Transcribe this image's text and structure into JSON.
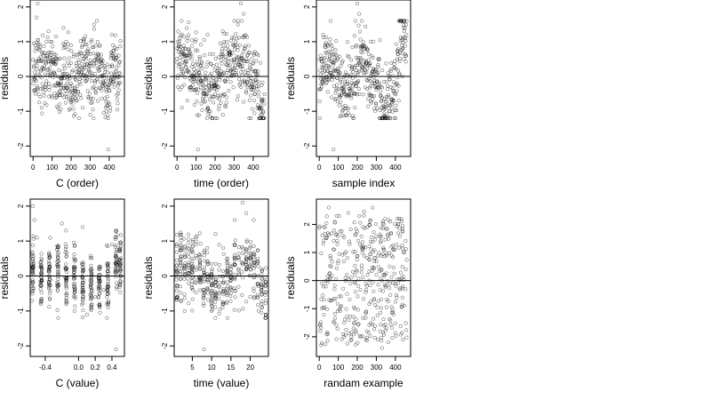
{
  "figure": {
    "background": "#ffffff",
    "point_color": "#000000",
    "refline_color": "#000000"
  },
  "chart_data": [
    {
      "type": "scatter",
      "xlabel": "C (order)",
      "ylabel": "residuals",
      "xlim": [
        -15,
        480
      ],
      "ylim": [
        -2.3,
        2.2
      ],
      "xticks": [
        0,
        100,
        200,
        300,
        400
      ],
      "xtick_labels": [
        "0",
        "100",
        "200",
        "300",
        "400"
      ],
      "yticks": [
        -2,
        -1,
        0,
        1,
        2
      ],
      "ytick_labels": [
        "-2",
        "-1",
        "0",
        "1",
        "2"
      ],
      "hline": 0,
      "n_points": 460,
      "points": [
        [
          5,
          0.3
        ],
        [
          12,
          -0.5
        ],
        [
          18,
          1.7
        ],
        [
          24,
          2.1
        ],
        [
          30,
          0.8
        ],
        [
          45,
          -0.9
        ],
        [
          55,
          0.2
        ],
        [
          70,
          1.0
        ],
        [
          85,
          -0.3
        ],
        [
          100,
          -0.6
        ],
        [
          120,
          0.4
        ],
        [
          140,
          -0.8
        ],
        [
          160,
          1.4
        ],
        [
          180,
          -0.2
        ],
        [
          200,
          0.9
        ],
        [
          220,
          -0.4
        ],
        [
          240,
          0.1
        ],
        [
          260,
          -0.9
        ],
        [
          280,
          0.6
        ],
        [
          300,
          -1.1
        ],
        [
          320,
          0.3
        ],
        [
          340,
          -0.7
        ],
        [
          360,
          0.5
        ],
        [
          380,
          0.2
        ],
        [
          395,
          -2.1
        ],
        [
          410,
          0.7
        ],
        [
          420,
          0.9
        ],
        [
          430,
          0.5
        ],
        [
          440,
          0.8
        ],
        [
          450,
          0.6
        ]
      ]
    },
    {
      "type": "scatter",
      "xlabel": "time (order)",
      "ylabel": "residuals",
      "xlim": [
        -15,
        480
      ],
      "ylim": [
        -2.3,
        2.2
      ],
      "xticks": [
        0,
        100,
        200,
        300,
        400
      ],
      "xtick_labels": [
        "0",
        "100",
        "200",
        "300",
        "400"
      ],
      "yticks": [
        -2,
        -1,
        0,
        1,
        2
      ],
      "ytick_labels": [
        "-2",
        "-1",
        "0",
        "1",
        "2"
      ],
      "hline": 0,
      "n_points": 460,
      "points": [
        [
          5,
          -0.3
        ],
        [
          15,
          1.1
        ],
        [
          25,
          -0.9
        ],
        [
          40,
          0.4
        ],
        [
          60,
          0.8
        ],
        [
          80,
          0.5
        ],
        [
          95,
          1.0
        ],
        [
          110,
          -2.1
        ],
        [
          125,
          0.3
        ],
        [
          140,
          -0.4
        ],
        [
          160,
          1.2
        ],
        [
          180,
          -0.2
        ],
        [
          200,
          -0.5
        ],
        [
          220,
          0.1
        ],
        [
          240,
          1.3
        ],
        [
          260,
          -0.6
        ],
        [
          280,
          0.7
        ],
        [
          300,
          0.4
        ],
        [
          320,
          1.5
        ],
        [
          335,
          2.1
        ],
        [
          350,
          1.8
        ],
        [
          370,
          -0.3
        ],
        [
          390,
          0.2
        ],
        [
          410,
          -0.5
        ],
        [
          430,
          -0.9
        ],
        [
          445,
          -1.1
        ]
      ]
    },
    {
      "type": "scatter",
      "xlabel": "sample index",
      "ylabel": "residuals",
      "xlim": [
        -15,
        480
      ],
      "ylim": [
        -2.3,
        2.2
      ],
      "xticks": [
        0,
        100,
        200,
        300,
        400
      ],
      "xtick_labels": [
        "0",
        "100",
        "200",
        "300",
        "400"
      ],
      "yticks": [
        -2,
        -1,
        0,
        1,
        2
      ],
      "ytick_labels": [
        "-2",
        "-1",
        "0",
        "1",
        "2"
      ],
      "hline": 0,
      "n_points": 460,
      "points": [
        [
          10,
          0.5
        ],
        [
          20,
          1.2
        ],
        [
          35,
          -0.2
        ],
        [
          50,
          0.3
        ],
        [
          65,
          -0.6
        ],
        [
          75,
          -2.1
        ],
        [
          90,
          -0.4
        ],
        [
          110,
          0.1
        ],
        [
          130,
          -0.3
        ],
        [
          150,
          0.6
        ],
        [
          170,
          0.2
        ],
        [
          190,
          1.6
        ],
        [
          200,
          2.1
        ],
        [
          210,
          1.8
        ],
        [
          230,
          0.9
        ],
        [
          250,
          0.4
        ],
        [
          270,
          1.0
        ],
        [
          290,
          -0.2
        ],
        [
          310,
          0.5
        ],
        [
          330,
          -0.6
        ],
        [
          350,
          -0.9
        ],
        [
          370,
          -1.0
        ],
        [
          390,
          -0.7
        ],
        [
          410,
          0.5
        ],
        [
          425,
          0.7
        ],
        [
          440,
          0.8
        ],
        [
          455,
          0.6
        ]
      ]
    },
    {
      "type": "scatter",
      "xlabel": "C (value)",
      "ylabel": "residuals",
      "xlim": [
        -0.58,
        0.55
      ],
      "ylim": [
        -2.3,
        2.2
      ],
      "xticks": [
        -0.4,
        0.0,
        0.2,
        0.4
      ],
      "xtick_labels": [
        "-0.4",
        "0.0",
        "0.2",
        "0.4"
      ],
      "yticks": [
        -2,
        -1,
        0,
        1,
        2
      ],
      "ytick_labels": [
        "-2",
        "-1",
        "0",
        "1",
        "2"
      ],
      "hline": 0,
      "n_points": 460,
      "columns": [
        -0.55,
        -0.45,
        -0.35,
        -0.25,
        -0.15,
        -0.05,
        0.05,
        0.15,
        0.25,
        0.35,
        0.45,
        0.5
      ],
      "points": [
        [
          -0.55,
          2.0
        ],
        [
          -0.53,
          1.6
        ],
        [
          -0.5,
          1.1
        ],
        [
          -0.45,
          -0.8
        ],
        [
          -0.35,
          0.6
        ],
        [
          -0.2,
          1.5
        ],
        [
          -0.05,
          -1.0
        ],
        [
          0.05,
          1.4
        ],
        [
          0.1,
          -1.1
        ],
        [
          0.2,
          -0.6
        ],
        [
          0.3,
          -0.4
        ],
        [
          0.4,
          0.9
        ],
        [
          0.45,
          -2.1
        ],
        [
          0.5,
          0.8
        ]
      ]
    },
    {
      "type": "scatter",
      "xlabel": "time (value)",
      "ylabel": "residuals",
      "xlim": [
        0.3,
        24.7
      ],
      "ylim": [
        -2.3,
        2.2
      ],
      "xticks": [
        5,
        10,
        15,
        20
      ],
      "xtick_labels": [
        "5",
        "10",
        "15",
        "20"
      ],
      "yticks": [
        -2,
        -1,
        0,
        1,
        2
      ],
      "ytick_labels": [
        "-2",
        "-1",
        "0",
        "1",
        "2"
      ],
      "hline": 0,
      "n_points": 460,
      "points": [
        [
          1,
          -0.3
        ],
        [
          2,
          1.1
        ],
        [
          3,
          -1.0
        ],
        [
          5,
          0.5
        ],
        [
          6,
          0.9
        ],
        [
          7,
          0.2
        ],
        [
          8,
          -2.1
        ],
        [
          9,
          0.4
        ],
        [
          11,
          1.2
        ],
        [
          12,
          -0.3
        ],
        [
          13,
          0.8
        ],
        [
          14,
          -0.5
        ],
        [
          16,
          1.6
        ],
        [
          18,
          2.1
        ],
        [
          19,
          1.8
        ],
        [
          20,
          0.3
        ],
        [
          21,
          -0.6
        ],
        [
          22,
          0.4
        ],
        [
          23,
          -0.9
        ],
        [
          24,
          -1.1
        ]
      ]
    },
    {
      "type": "scatter",
      "xlabel": "randam example",
      "ylabel": "residuals",
      "xlim": [
        -15,
        480
      ],
      "ylim": [
        -2.7,
        2.9
      ],
      "xticks": [
        0,
        100,
        200,
        300,
        400
      ],
      "xtick_labels": [
        "0",
        "100",
        "200",
        "300",
        "400"
      ],
      "yticks": [
        -2,
        -1,
        0,
        1,
        2
      ],
      "ytick_labels": [
        "-2",
        "-1",
        "0",
        "1",
        "2"
      ],
      "hline": 0,
      "n_points": 400,
      "points": [
        [
          10,
          -2.3
        ],
        [
          30,
          1.9
        ],
        [
          50,
          2.6
        ],
        [
          80,
          -1.5
        ],
        [
          100,
          0.7
        ],
        [
          130,
          -2.0
        ],
        [
          160,
          1.3
        ],
        [
          190,
          -0.4
        ],
        [
          210,
          2.3
        ],
        [
          250,
          -1.8
        ],
        [
          280,
          2.6
        ],
        [
          300,
          0.2
        ],
        [
          330,
          -2.4
        ],
        [
          360,
          1.6
        ],
        [
          390,
          -1.2
        ],
        [
          420,
          2.2
        ],
        [
          440,
          -2.1
        ],
        [
          455,
          0.4
        ]
      ]
    }
  ]
}
